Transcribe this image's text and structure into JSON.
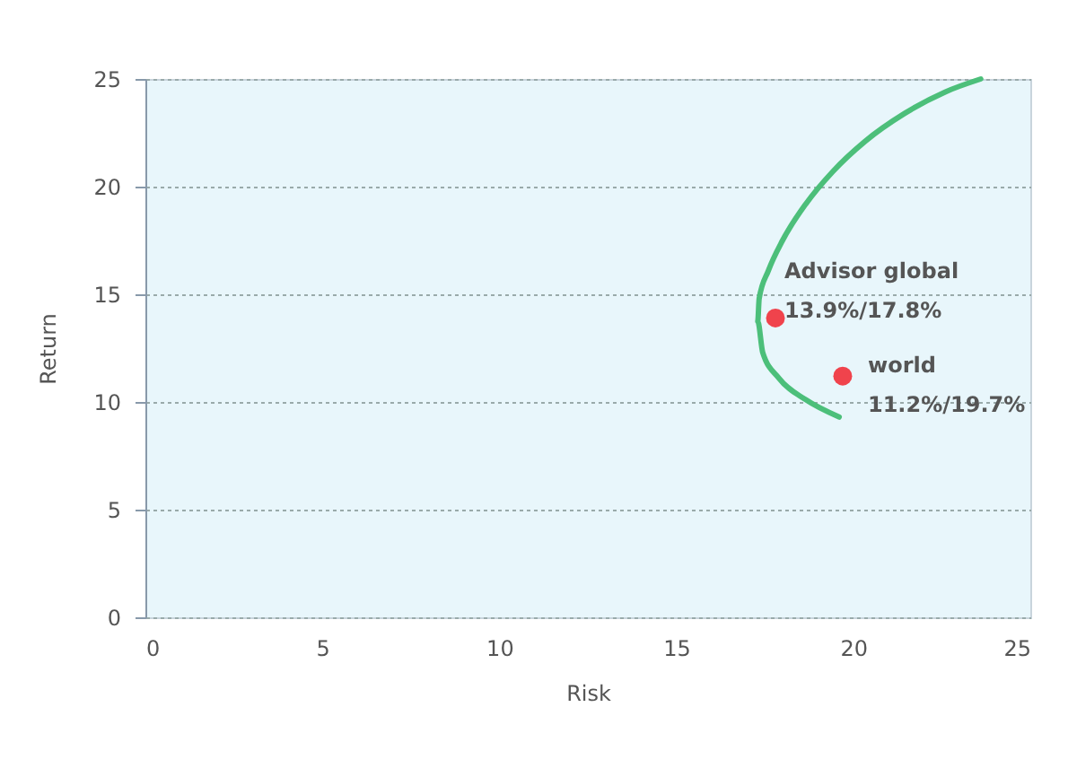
{
  "chart_data": {
    "type": "scatter",
    "xlabel": "Risk",
    "ylabel": "Return",
    "xlim": [
      0,
      25
    ],
    "ylim": [
      0,
      25
    ],
    "xticks": [
      0,
      5,
      10,
      15,
      20,
      25
    ],
    "yticks": [
      0,
      5,
      10,
      15,
      20,
      25
    ],
    "grid": "y",
    "marker": "circle",
    "x": [
      17.8,
      19.7
    ],
    "series": [
      {
        "type": "line",
        "marker": "none",
        "color": "#4cbf7a",
        "x": [
          19.6,
          18.66,
          17.9,
          17.44,
          17.3,
          17.34,
          17.6,
          18.0,
          18.66,
          19.42,
          20.33,
          21.45,
          22.6,
          23.6
        ],
        "values": [
          9.3,
          10.1,
          11.1,
          12.3,
          13.75,
          14.8,
          16.1,
          17.5,
          19.2,
          20.7,
          22.1,
          23.4,
          24.4,
          25.0
        ]
      },
      {
        "colors": [
          "#f0434c",
          "#f0434c"
        ],
        "values": [
          13.9,
          11.2
        ]
      }
    ],
    "annotations": [
      {
        "text": "Advisor global\n13.9%/17.8%",
        "x": 17.8,
        "y": 13.9
      },
      {
        "text": "world\n11.2%/19.7%",
        "x": 19.7,
        "y": 11.2
      }
    ]
  }
}
